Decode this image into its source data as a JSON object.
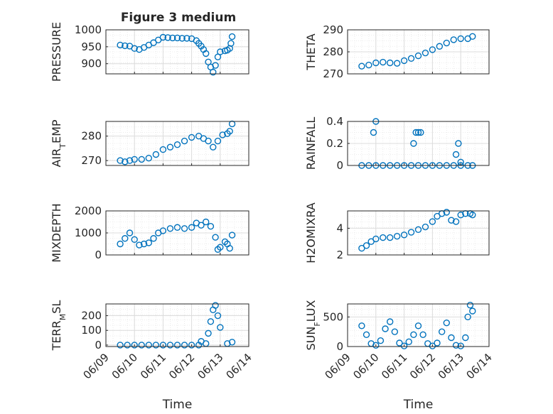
{
  "title": "Figure 3 medium",
  "chart_data": [
    {
      "type": "scatter",
      "position": "row1-left",
      "ylabel": {
        "base": "PRESSURE",
        "sub": ""
      },
      "ylim": [
        870,
        1000
      ],
      "yticks": [
        900,
        950,
        1000
      ],
      "ytick_labels": [
        "900",
        "950",
        "1000"
      ],
      "x": [
        "06/09 12:00",
        "06/09 16:00",
        "06/09 20:00",
        "06/10 00:00",
        "06/10 04:00",
        "06/10 08:00",
        "06/10 12:00",
        "06/10 16:00",
        "06/10 20:00",
        "06/11 00:00",
        "06/11 04:00",
        "06/11 08:00",
        "06/11 12:00",
        "06/11 16:00",
        "06/11 20:00",
        "06/12 00:00",
        "06/12 04:00",
        "06/12 06:00",
        "06/12 08:00",
        "06/12 10:00",
        "06/12 12:00",
        "06/12 14:00",
        "06/12 16:00",
        "06/12 18:00",
        "06/12 20:00",
        "06/12 22:00",
        "06/13 00:00",
        "06/13 04:00",
        "06/13 06:00",
        "06/13 08:00",
        "06/13 09:00",
        "06/13 10:00"
      ],
      "y": [
        955,
        953,
        952,
        945,
        942,
        948,
        955,
        962,
        970,
        978,
        977,
        976,
        976,
        975,
        975,
        974,
        968,
        960,
        952,
        942,
        930,
        905,
        890,
        875,
        895,
        920,
        935,
        938,
        940,
        945,
        960,
        980
      ]
    },
    {
      "type": "scatter",
      "position": "row1-right",
      "ylabel": {
        "base": "THETA",
        "sub": ""
      },
      "ylim": [
        270,
        290
      ],
      "yticks": [
        270,
        280,
        290
      ],
      "ytick_labels": [
        "270",
        "280",
        "290"
      ],
      "x": [
        "06/09 12:00",
        "06/09 18:00",
        "06/10 00:00",
        "06/10 06:00",
        "06/10 12:00",
        "06/10 18:00",
        "06/11 00:00",
        "06/11 06:00",
        "06/11 12:00",
        "06/11 18:00",
        "06/12 00:00",
        "06/12 06:00",
        "06/12 12:00",
        "06/12 18:00",
        "06/13 00:00",
        "06/13 06:00",
        "06/13 10:00"
      ],
      "y": [
        273.5,
        274,
        275,
        275.3,
        275,
        274.8,
        276,
        277,
        278.2,
        279.5,
        281,
        282.5,
        284,
        285.5,
        286,
        286,
        287
      ]
    },
    {
      "type": "scatter",
      "position": "row2-left",
      "ylabel": {
        "base": "AIR",
        "sub": "T",
        "rest": "EMP"
      },
      "ylim": [
        268,
        286
      ],
      "yticks": [
        270,
        280
      ],
      "ytick_labels": [
        "270",
        "280"
      ],
      "x": [
        "06/09 12:00",
        "06/09 16:00",
        "06/09 20:00",
        "06/10 00:00",
        "06/10 06:00",
        "06/10 12:00",
        "06/10 18:00",
        "06/11 00:00",
        "06/11 06:00",
        "06/11 12:00",
        "06/11 18:00",
        "06/12 00:00",
        "06/12 06:00",
        "06/12 10:00",
        "06/12 14:00",
        "06/12 18:00",
        "06/12 22:00",
        "06/13 02:00",
        "06/13 06:00",
        "06/13 08:00",
        "06/13 10:00"
      ],
      "y": [
        270,
        269.5,
        270,
        270.5,
        270.5,
        271,
        272.5,
        274.5,
        275.5,
        276.5,
        278,
        279.5,
        280,
        279,
        278,
        275.5,
        278,
        280.5,
        281,
        282,
        285
      ]
    },
    {
      "type": "scatter",
      "position": "row2-right",
      "ylabel": {
        "base": "RAINFALL",
        "sub": ""
      },
      "ylim": [
        0,
        0.4
      ],
      "yticks": [
        0,
        0.2,
        0.4
      ],
      "ytick_labels": [
        "0",
        "0.2",
        "0.4"
      ],
      "x": [
        "06/09 12:00",
        "06/09 18:00",
        "06/10 00:00",
        "06/10 06:00",
        "06/10 12:00",
        "06/10 18:00",
        "06/11 00:00",
        "06/11 06:00",
        "06/11 12:00",
        "06/11 18:00",
        "06/12 00:00",
        "06/12 06:00",
        "06/12 12:00",
        "06/12 18:00",
        "06/13 00:00",
        "06/13 06:00",
        "06/13 10:00",
        "06/09 22:00",
        "06/10 00:00",
        "06/11 08:00",
        "06/11 10:00",
        "06/11 12:00",
        "06/11 14:00",
        "06/12 20:00",
        "06/12 22:00",
        "06/13 00:00"
      ],
      "y": [
        0,
        0,
        0,
        0,
        0,
        0,
        0,
        0,
        0,
        0,
        0,
        0,
        0,
        0,
        0,
        0,
        0,
        0.3,
        0.4,
        0.2,
        0.3,
        0.3,
        0.3,
        0.1,
        0.2,
        0.03
      ]
    },
    {
      "type": "scatter",
      "position": "row3-left",
      "ylabel": {
        "base": "MIXDEPTH",
        "sub": ""
      },
      "ylim": [
        0,
        2000
      ],
      "yticks": [
        0,
        1000,
        2000
      ],
      "ytick_labels": [
        "0",
        "1000",
        "2000"
      ],
      "x": [
        "06/09 12:00",
        "06/09 16:00",
        "06/09 20:00",
        "06/10 00:00",
        "06/10 04:00",
        "06/10 08:00",
        "06/10 12:00",
        "06/10 16:00",
        "06/10 20:00",
        "06/11 00:00",
        "06/11 06:00",
        "06/11 12:00",
        "06/11 18:00",
        "06/12 00:00",
        "06/12 04:00",
        "06/12 08:00",
        "06/12 12:00",
        "06/12 16:00",
        "06/12 20:00",
        "06/12 22:00",
        "06/13 00:00",
        "06/13 04:00",
        "06/13 06:00",
        "06/13 08:00",
        "06/13 10:00"
      ],
      "y": [
        500,
        750,
        1000,
        700,
        450,
        500,
        550,
        750,
        1000,
        1100,
        1200,
        1250,
        1200,
        1250,
        1450,
        1350,
        1500,
        1300,
        800,
        250,
        350,
        600,
        500,
        300,
        900
      ]
    },
    {
      "type": "scatter",
      "position": "row3-right",
      "ylabel": {
        "base": "H2OMIXRA",
        "sub": ""
      },
      "ylim": [
        2,
        5.3
      ],
      "yticks": [
        2,
        4
      ],
      "ytick_labels": [
        "2",
        "4"
      ],
      "x": [
        "06/09 12:00",
        "06/09 16:00",
        "06/09 20:00",
        "06/10 00:00",
        "06/10 06:00",
        "06/10 12:00",
        "06/10 18:00",
        "06/11 00:00",
        "06/11 06:00",
        "06/11 12:00",
        "06/11 18:00",
        "06/12 00:00",
        "06/12 04:00",
        "06/12 08:00",
        "06/12 12:00",
        "06/12 16:00",
        "06/12 20:00",
        "06/13 00:00",
        "06/13 04:00",
        "06/13 08:00",
        "06/13 10:00"
      ],
      "y": [
        2.5,
        2.7,
        3,
        3.2,
        3.3,
        3.3,
        3.4,
        3.5,
        3.7,
        3.9,
        4.1,
        4.5,
        4.9,
        5.1,
        5.2,
        4.6,
        4.5,
        5,
        5.1,
        5.1,
        5.0
      ]
    },
    {
      "type": "scatter",
      "position": "row4-left",
      "ylabel": {
        "base": "TERR",
        "sub": "M",
        "rest": "SL"
      },
      "ylim": [
        -10,
        280
      ],
      "yticks": [
        0,
        100,
        200
      ],
      "ytick_labels": [
        "0",
        "100",
        "200"
      ],
      "x": [
        "06/09 12:00",
        "06/09 18:00",
        "06/10 00:00",
        "06/10 06:00",
        "06/10 12:00",
        "06/10 18:00",
        "06/11 00:00",
        "06/11 06:00",
        "06/11 12:00",
        "06/11 18:00",
        "06/12 00:00",
        "06/12 06:00",
        "06/12 08:00",
        "06/12 12:00",
        "06/12 14:00",
        "06/12 16:00",
        "06/12 18:00",
        "06/12 20:00",
        "06/12 22:00",
        "06/13 00:00",
        "06/13 06:00",
        "06/13 10:00"
      ],
      "y": [
        0,
        0,
        0,
        0,
        0,
        0,
        0,
        0,
        0,
        0,
        0,
        0,
        25,
        10,
        80,
        160,
        240,
        270,
        200,
        120,
        10,
        20
      ]
    },
    {
      "type": "scatter",
      "position": "row4-right",
      "ylabel": {
        "base": "SUN",
        "sub": "F",
        "rest": "LUX"
      },
      "ylim": [
        0,
        720
      ],
      "yticks": [
        0,
        500
      ],
      "ytick_labels": [
        "0",
        "500"
      ],
      "x": [
        "06/09 12:00",
        "06/09 16:00",
        "06/09 20:00",
        "06/10 00:00",
        "06/10 04:00",
        "06/10 08:00",
        "06/10 12:00",
        "06/10 16:00",
        "06/10 20:00",
        "06/11 00:00",
        "06/11 04:00",
        "06/11 08:00",
        "06/11 12:00",
        "06/11 16:00",
        "06/11 20:00",
        "06/12 00:00",
        "06/12 04:00",
        "06/12 08:00",
        "06/12 12:00",
        "06/12 16:00",
        "06/12 20:00",
        "06/13 00:00",
        "06/13 04:00",
        "06/13 06:00",
        "06/13 08:00",
        "06/13 10:00"
      ],
      "y": [
        350,
        200,
        50,
        20,
        100,
        300,
        420,
        250,
        60,
        10,
        80,
        200,
        350,
        200,
        50,
        10,
        60,
        250,
        400,
        150,
        20,
        10,
        150,
        500,
        700,
        600
      ]
    }
  ],
  "xaxis": {
    "xlim": [
      "06/09 00:00",
      "06/14 00:00"
    ],
    "tick_labels": [
      "06/09",
      "06/10",
      "06/11",
      "06/12",
      "06/13",
      "06/14"
    ],
    "xlabel": "Time"
  },
  "colors": {
    "marker": "#0072BD",
    "grid": "#dcdcdc",
    "axis": "#262626"
  }
}
